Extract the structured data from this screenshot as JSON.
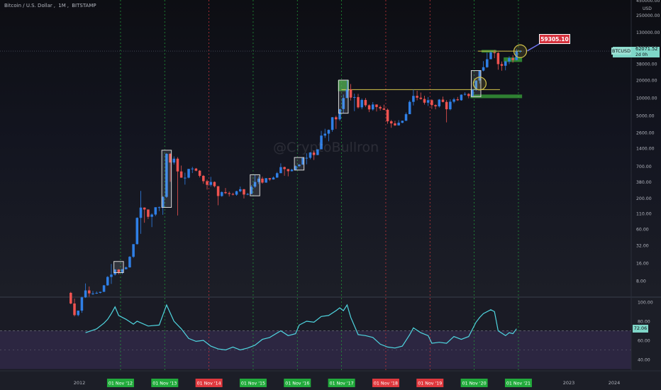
{
  "header": {
    "symbol_name": "Bitcoin / U.S. Dollar",
    "interval": "1M",
    "exchange": "BITSTAMP",
    "separator": ","
  },
  "price_axis": {
    "currency": "USD",
    "tick_labels": [
      "450000.00",
      "250000.00",
      "130000.00",
      "70000.00",
      "38000.00",
      "20000.00",
      "10000.00",
      "5000.00",
      "2600.00",
      "1400.00",
      "700.00",
      "380.00",
      "200.00",
      "110.00",
      "60.00",
      "32.00",
      "16.00",
      "8.00"
    ]
  },
  "rsi_axis": {
    "tick_labels": [
      "100.00",
      "80.00",
      "60.00",
      "40.00"
    ]
  },
  "time_axis": {
    "plain_labels": [
      "2012",
      "2023",
      "2024"
    ],
    "highlight_labels": [
      {
        "text": "01 Nov '12",
        "color": "#22ab3c"
      },
      {
        "text": "01 Nov '13",
        "color": "#22ab3c"
      },
      {
        "text": "01 Nov '14",
        "color": "#e0393e"
      },
      {
        "text": "01 Nov '15",
        "color": "#22ab3c"
      },
      {
        "text": "01 Nov '16",
        "color": "#22ab3c"
      },
      {
        "text": "01 Nov '17",
        "color": "#22ab3c"
      },
      {
        "text": "01 Nov '18",
        "color": "#e0393e"
      },
      {
        "text": "01 Nov '19",
        "color": "#e0393e"
      },
      {
        "text": "01 Nov '20",
        "color": "#22ab3c"
      },
      {
        "text": "01 Nov '21",
        "color": "#22ab3c"
      }
    ]
  },
  "price_tag": {
    "symbol": "BTCUSD",
    "price": "62071.52",
    "countdown": "2d 0h"
  },
  "annotation": {
    "text": "59305.10"
  },
  "rsi_tag": {
    "text": "72.06"
  },
  "watermark": "@CryptoBullron",
  "colors": {
    "up": "#2f7fe6",
    "down": "#ef5350",
    "rsi": "#4fd6e0",
    "green_zone": "#3aa53a",
    "support_line": "#d4c44a",
    "vline_green": "#46c04a",
    "vline_red": "#e04040"
  },
  "chart_data": {
    "type": "candlestick",
    "title": "Bitcoin / U.S. Dollar, 1M, BITSTAMP",
    "y_scale": "log",
    "y_range": [
      3,
      500000
    ],
    "x": [
      "2011-10",
      "2012-05",
      "2012-11",
      "2013-11",
      "2014-11",
      "2015-11",
      "2016-11",
      "2017-11",
      "2018-11",
      "2019-11",
      "2020-11",
      "2021-11"
    ],
    "candles": [
      [
        "2011-09",
        5.0,
        5.2,
        3.2,
        3.3
      ],
      [
        "2011-10",
        3.3,
        4.0,
        2.0,
        2.1
      ],
      [
        "2011-11",
        2.1,
        2.5,
        2.0,
        2.5
      ],
      [
        "2011-12",
        2.5,
        4.3,
        2.3,
        4.2
      ],
      [
        "2012-01",
        4.2,
        7.2,
        4.1,
        5.5
      ],
      [
        "2012-02",
        5.5,
        6.4,
        4.3,
        4.9
      ],
      [
        "2012-03",
        4.9,
        5.4,
        4.6,
        4.9
      ],
      [
        "2012-04",
        4.9,
        5.3,
        4.8,
        5.0
      ],
      [
        "2012-05",
        5.0,
        5.2,
        4.9,
        5.2
      ],
      [
        "2012-06",
        5.2,
        6.8,
        5.2,
        6.7
      ],
      [
        "2012-07",
        6.7,
        9.6,
        6.6,
        9.3
      ],
      [
        "2012-08",
        9.3,
        15.4,
        7.1,
        10.2
      ],
      [
        "2012-09",
        10.2,
        12.6,
        9.8,
        12.4
      ],
      [
        "2012-10",
        12.4,
        12.6,
        10.3,
        11.2
      ],
      [
        "2012-11",
        11.2,
        12.5,
        10.4,
        12.6
      ],
      [
        "2012-12",
        12.6,
        14.0,
        12.5,
        13.5
      ],
      [
        "2013-01",
        13.5,
        21.0,
        13.4,
        20.4
      ],
      [
        "2013-02",
        20.4,
        33.4,
        19.6,
        33.4
      ],
      [
        "2013-03",
        33.4,
        95.0,
        33.0,
        93.0
      ],
      [
        "2013-04",
        93.0,
        266.0,
        50.0,
        139.0
      ],
      [
        "2013-05",
        139.0,
        140.0,
        77.0,
        129.0
      ],
      [
        "2013-06",
        129.0,
        129.0,
        89.0,
        97.0
      ],
      [
        "2013-07",
        97.0,
        111.0,
        65.0,
        106.0
      ],
      [
        "2013-08",
        106.0,
        130.0,
        100.0,
        141.0
      ],
      [
        "2013-09",
        141.0,
        145.0,
        121.0,
        141.0
      ],
      [
        "2013-10",
        141.0,
        217.0,
        105.0,
        211.0
      ],
      [
        "2013-11",
        211.0,
        1163.0,
        203.0,
        1130.0
      ],
      [
        "2013-12",
        1130.0,
        1163.0,
        380.0,
        805.0
      ],
      [
        "2014-01",
        805.0,
        1022.0,
        744.0,
        935.0
      ],
      [
        "2014-02",
        935.0,
        992.0,
        102.0,
        569.0
      ],
      [
        "2014-03",
        569.0,
        715.0,
        444.0,
        446.0
      ],
      [
        "2014-04",
        446.0,
        542.0,
        340.0,
        446.0
      ],
      [
        "2014-05",
        446.0,
        629.0,
        434.0,
        627.0
      ],
      [
        "2014-06",
        627.0,
        679.0,
        534.0,
        636.0
      ],
      [
        "2014-07",
        636.0,
        652.0,
        573.0,
        586.0
      ],
      [
        "2014-08",
        586.0,
        600.0,
        450.0,
        479.0
      ],
      [
        "2014-09",
        479.0,
        494.0,
        352.0,
        389.0
      ],
      [
        "2014-10",
        389.0,
        413.0,
        280.0,
        337.0
      ],
      [
        "2014-11",
        337.0,
        460.0,
        315.0,
        377.0
      ],
      [
        "2014-12",
        377.0,
        385.0,
        305.0,
        320.0
      ],
      [
        "2015-01",
        320.0,
        320.0,
        152.0,
        218.0
      ],
      [
        "2015-02",
        218.0,
        262.0,
        212.0,
        254.0
      ],
      [
        "2015-03",
        254.0,
        298.0,
        236.0,
        244.0
      ],
      [
        "2015-04",
        244.0,
        260.0,
        214.0,
        236.0
      ],
      [
        "2015-05",
        236.0,
        248.0,
        224.0,
        230.0
      ],
      [
        "2015-06",
        230.0,
        268.0,
        221.0,
        263.0
      ],
      [
        "2015-07",
        263.0,
        315.0,
        253.0,
        284.0
      ],
      [
        "2015-08",
        284.0,
        287.0,
        198.0,
        231.0
      ],
      [
        "2015-09",
        231.0,
        246.0,
        225.0,
        236.0
      ],
      [
        "2015-10",
        236.0,
        334.0,
        235.0,
        314.0
      ],
      [
        "2015-11",
        314.0,
        502.0,
        300.0,
        377.0
      ],
      [
        "2015-12",
        377.0,
        467.0,
        348.0,
        430.0
      ],
      [
        "2016-01",
        430.0,
        462.0,
        353.0,
        368.0
      ],
      [
        "2016-02",
        368.0,
        440.0,
        366.0,
        437.0
      ],
      [
        "2016-03",
        437.0,
        442.0,
        392.0,
        416.0
      ],
      [
        "2016-04",
        416.0,
        468.0,
        414.0,
        448.0
      ],
      [
        "2016-05",
        448.0,
        556.0,
        442.0,
        531.0
      ],
      [
        "2016-06",
        531.0,
        778.0,
        532.0,
        673.0
      ],
      [
        "2016-07",
        673.0,
        686.0,
        480.0,
        624.0
      ],
      [
        "2016-08",
        624.0,
        626.0,
        470.0,
        574.0
      ],
      [
        "2016-09",
        574.0,
        629.0,
        570.0,
        609.0
      ],
      [
        "2016-10",
        609.0,
        720.0,
        604.0,
        700.0
      ],
      [
        "2016-11",
        700.0,
        755.0,
        681.0,
        742.0
      ],
      [
        "2016-12",
        742.0,
        975.0,
        740.0,
        963.0
      ],
      [
        "2017-01",
        963.0,
        1153.0,
        751.0,
        968.0
      ],
      [
        "2017-02",
        968.0,
        1211.0,
        914.0,
        1190.0
      ],
      [
        "2017-03",
        1190.0,
        1290.0,
        890.0,
        1079.0
      ],
      [
        "2017-04",
        1079.0,
        1350.0,
        1071.0,
        1348.0
      ],
      [
        "2017-05",
        1348.0,
        2760.0,
        1345.0,
        2300.0
      ],
      [
        "2017-06",
        2300.0,
        2999.0,
        2100.0,
        2480.0
      ],
      [
        "2017-07",
        2480.0,
        2915.0,
        1840.0,
        2875.0
      ],
      [
        "2017-08",
        2875.0,
        4737.0,
        2672.0,
        4703.0
      ],
      [
        "2017-09",
        4703.0,
        4975.0,
        2980.0,
        4339.0
      ],
      [
        "2017-10",
        4339.0,
        6470.0,
        4100.0,
        6468.0
      ],
      [
        "2017-11",
        6468.0,
        11400.0,
        5519.0,
        9946.0
      ],
      [
        "2017-12",
        9946.0,
        19666.0,
        10000.0,
        13880.0
      ],
      [
        "2018-01",
        13880.0,
        17176.0,
        9035.0,
        10114.0
      ],
      [
        "2018-02",
        10114.0,
        11789.0,
        5968.0,
        10325.0
      ],
      [
        "2018-03",
        10325.0,
        11710.0,
        6600.0,
        6926.0
      ],
      [
        "2018-04",
        6926.0,
        9768.0,
        6425.0,
        9241.0
      ],
      [
        "2018-05",
        9241.0,
        9964.0,
        7040.0,
        7500.0
      ],
      [
        "2018-06",
        7500.0,
        7770.0,
        5750.0,
        6390.0
      ],
      [
        "2018-07",
        6390.0,
        8507.0,
        6070.0,
        7730.0
      ],
      [
        "2018-08",
        7730.0,
        7760.0,
        5880.0,
        7010.0
      ],
      [
        "2018-09",
        7010.0,
        7410.0,
        6100.0,
        6625.0
      ],
      [
        "2018-10",
        6625.0,
        7680.0,
        6200.0,
        6300.0
      ],
      [
        "2018-11",
        6300.0,
        6600.0,
        3650.0,
        4020.0
      ],
      [
        "2018-12",
        4020.0,
        4230.0,
        3120.0,
        3700.0
      ],
      [
        "2019-01",
        3700.0,
        4100.0,
        3350.0,
        3430.0
      ],
      [
        "2019-02",
        3430.0,
        4200.0,
        3390.0,
        3790.0
      ],
      [
        "2019-03",
        3790.0,
        4130.0,
        3740.0,
        4100.0
      ],
      [
        "2019-04",
        4100.0,
        5640.0,
        4080.0,
        5300.0
      ],
      [
        "2019-05",
        5300.0,
        9080.0,
        5300.0,
        8570.0
      ],
      [
        "2019-06",
        8570.0,
        13880.0,
        7450.0,
        10820.0
      ],
      [
        "2019-07",
        10820.0,
        13200.0,
        9080.0,
        10080.0
      ],
      [
        "2019-08",
        10080.0,
        12330.0,
        9330.0,
        9600.0
      ],
      [
        "2019-09",
        9600.0,
        10900.0,
        7710.0,
        8300.0
      ],
      [
        "2019-10",
        8300.0,
        10350.0,
        7300.0,
        9150.0
      ],
      [
        "2019-11",
        9150.0,
        9500.0,
        6520.0,
        7550.0
      ],
      [
        "2019-12",
        7550.0,
        7750.0,
        6420.0,
        7200.0
      ],
      [
        "2020-01",
        7200.0,
        9570.0,
        6850.0,
        9350.0
      ],
      [
        "2020-02",
        9350.0,
        10500.0,
        8400.0,
        8540.0
      ],
      [
        "2020-03",
        8540.0,
        9180.0,
        3850.0,
        6420.0
      ],
      [
        "2020-04",
        6420.0,
        9460.0,
        6150.0,
        8620.0
      ],
      [
        "2020-05",
        8620.0,
        10060.0,
        8110.0,
        9450.0
      ],
      [
        "2020-06",
        9450.0,
        10380.0,
        8900.0,
        9140.0
      ],
      [
        "2020-07",
        9140.0,
        11450.0,
        8980.0,
        11340.0
      ],
      [
        "2020-08",
        11340.0,
        12470.0,
        10960.0,
        11650.0
      ],
      [
        "2020-09",
        11650.0,
        12060.0,
        9830.0,
        10780.0
      ],
      [
        "2020-10",
        10780.0,
        14100.0,
        10400.0,
        13800.0
      ],
      [
        "2020-11",
        13800.0,
        19880.0,
        13200.0,
        19700.0
      ],
      [
        "2020-12",
        19700.0,
        29300.0,
        17600.0,
        28980.0
      ],
      [
        "2021-01",
        28980.0,
        41950.0,
        28120.0,
        33100.0
      ],
      [
        "2021-02",
        33100.0,
        58350.0,
        32300.0,
        45200.0
      ],
      [
        "2021-03",
        45200.0,
        61780.0,
        45000.0,
        58800.0
      ],
      [
        "2021-04",
        58800.0,
        64800.0,
        47000.0,
        57720.0
      ],
      [
        "2021-05",
        57720.0,
        59500.0,
        30000.0,
        37300.0
      ],
      [
        "2021-06",
        37300.0,
        41300.0,
        28800.0,
        35040.0
      ],
      [
        "2021-07",
        35040.0,
        42300.0,
        29300.0,
        41460.0
      ],
      [
        "2021-08",
        41460.0,
        50500.0,
        37300.0,
        47100.0
      ],
      [
        "2021-09",
        47100.0,
        52900.0,
        39600.0,
        43800.0
      ],
      [
        "2021-10",
        43800.0,
        67000.0,
        43300.0,
        61300.0
      ],
      [
        "2021-11",
        61300.0,
        64000.0,
        58500.0,
        62071.52
      ]
    ],
    "rsi_series": [
      {
        "x": "2012-01",
        "y": 68
      },
      {
        "x": "2012-04",
        "y": 72
      },
      {
        "x": "2012-06",
        "y": 78
      },
      {
        "x": "2012-07",
        "y": 82
      },
      {
        "x": "2012-08",
        "y": 88
      },
      {
        "x": "2012-09",
        "y": 95
      },
      {
        "x": "2012-10",
        "y": 86
      },
      {
        "x": "2012-12",
        "y": 82
      },
      {
        "x": "2013-02",
        "y": 77
      },
      {
        "x": "2013-03",
        "y": 80
      },
      {
        "x": "2013-06",
        "y": 75
      },
      {
        "x": "2013-09",
        "y": 76
      },
      {
        "x": "2013-11",
        "y": 97
      },
      {
        "x": "2014-01",
        "y": 80
      },
      {
        "x": "2014-03",
        "y": 72
      },
      {
        "x": "2014-05",
        "y": 62
      },
      {
        "x": "2014-07",
        "y": 59
      },
      {
        "x": "2014-09",
        "y": 60
      },
      {
        "x": "2014-11",
        "y": 54
      },
      {
        "x": "2015-01",
        "y": 51
      },
      {
        "x": "2015-03",
        "y": 50
      },
      {
        "x": "2015-05",
        "y": 53
      },
      {
        "x": "2015-07",
        "y": 50
      },
      {
        "x": "2015-09",
        "y": 52
      },
      {
        "x": "2015-11",
        "y": 55
      },
      {
        "x": "2016-01",
        "y": 61
      },
      {
        "x": "2016-03",
        "y": 63
      },
      {
        "x": "2016-06",
        "y": 70
      },
      {
        "x": "2016-08",
        "y": 65
      },
      {
        "x": "2016-10",
        "y": 67
      },
      {
        "x": "2016-11",
        "y": 76
      },
      {
        "x": "2017-01",
        "y": 80
      },
      {
        "x": "2017-03",
        "y": 79
      },
      {
        "x": "2017-05",
        "y": 85
      },
      {
        "x": "2017-07",
        "y": 86
      },
      {
        "x": "2017-09",
        "y": 91
      },
      {
        "x": "2017-10",
        "y": 94
      },
      {
        "x": "2017-11",
        "y": 91
      },
      {
        "x": "2017-12",
        "y": 97
      },
      {
        "x": "2018-01",
        "y": 84
      },
      {
        "x": "2018-03",
        "y": 66
      },
      {
        "x": "2018-05",
        "y": 65
      },
      {
        "x": "2018-07",
        "y": 63
      },
      {
        "x": "2018-09",
        "y": 56
      },
      {
        "x": "2018-11",
        "y": 53
      },
      {
        "x": "2019-01",
        "y": 52
      },
      {
        "x": "2019-03",
        "y": 54
      },
      {
        "x": "2019-05",
        "y": 66
      },
      {
        "x": "2019-06",
        "y": 73
      },
      {
        "x": "2019-08",
        "y": 68
      },
      {
        "x": "2019-10",
        "y": 65
      },
      {
        "x": "2019-11",
        "y": 57
      },
      {
        "x": "2020-01",
        "y": 58
      },
      {
        "x": "2020-03",
        "y": 57
      },
      {
        "x": "2020-05",
        "y": 64
      },
      {
        "x": "2020-07",
        "y": 61
      },
      {
        "x": "2020-09",
        "y": 64
      },
      {
        "x": "2020-11",
        "y": 79
      },
      {
        "x": "2020-12",
        "y": 84
      },
      {
        "x": "2021-01",
        "y": 88
      },
      {
        "x": "2021-03",
        "y": 92
      },
      {
        "x": "2021-04",
        "y": 90
      },
      {
        "x": "2021-05",
        "y": 70
      },
      {
        "x": "2021-07",
        "y": 65
      },
      {
        "x": "2021-08",
        "y": 68
      },
      {
        "x": "2021-09",
        "y": 67
      },
      {
        "x": "2021-10",
        "y": 72.06
      }
    ],
    "rsi_range": [
      30,
      105
    ],
    "rsi_levels": [
      70,
      30
    ],
    "highlight_boxes": [
      {
        "from": "2012-09",
        "to": "2012-11",
        "low": 11,
        "high": 17
      },
      {
        "from": "2013-10",
        "to": "2013-12",
        "low": 140,
        "high": 1300
      },
      {
        "from": "2015-10",
        "to": "2015-12",
        "low": 220,
        "high": 500
      },
      {
        "from": "2016-10",
        "to": "2016-12",
        "low": 600,
        "high": 980
      },
      {
        "from": "2017-10",
        "to": "2017-12",
        "low": 5500,
        "high": 20000
      },
      {
        "from": "2020-10",
        "to": "2020-12",
        "low": 10500,
        "high": 29000
      }
    ],
    "green_zones": [
      {
        "from": "2017-10",
        "to": "2017-12",
        "low": 13000,
        "high": 20000
      },
      {
        "from": "2020-10",
        "to": "2021-11",
        "low": 9900,
        "high": 11400
      },
      {
        "from": "2021-01",
        "to": "2021-04",
        "low": 58500,
        "high": 65000
      },
      {
        "from": "2021-07",
        "to": "2021-11",
        "low": 40600,
        "high": 48600
      }
    ],
    "support_lines": [
      {
        "from": "2017-11",
        "to": "2021-05",
        "y": 13800
      },
      {
        "from": "2020-12",
        "to": "2021-11",
        "y": 62000
      }
    ],
    "circles": [
      {
        "x": "2020-12",
        "y": 17500
      },
      {
        "x": "2021-11",
        "y": 61700
      }
    ],
    "arrow_target": {
      "x": "2021-11",
      "y": 59305.1
    },
    "dotted_price_line": 62071.52
  }
}
